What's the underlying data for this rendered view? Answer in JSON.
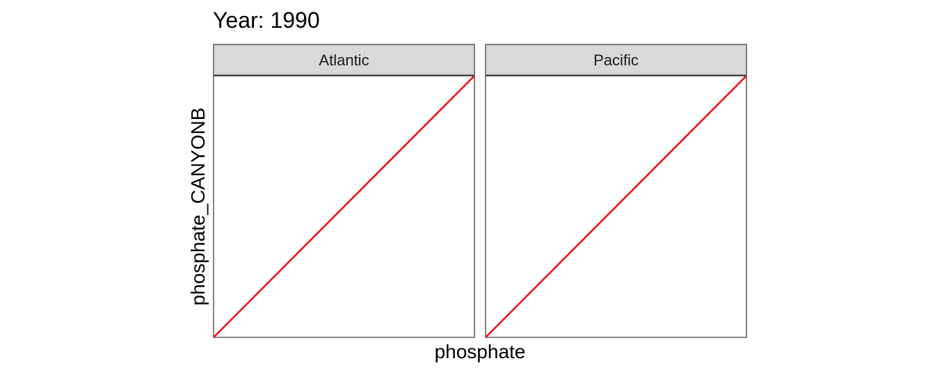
{
  "chart_data": {
    "type": "line",
    "title": "Year: 1990",
    "xlabel": "phosphate",
    "ylabel": "phosphate_CANYONB",
    "grid": false,
    "legend": "none",
    "line_color": "#ee1111",
    "strip_fill": "#d9d9d9",
    "panel_border": "#333333",
    "panels": [
      {
        "name": "Atlantic",
        "series": [
          {
            "x": [
              0,
              1
            ],
            "y": [
              0,
              1
            ]
          }
        ]
      },
      {
        "name": "Pacific",
        "series": [
          {
            "x": [
              0,
              1
            ],
            "y": [
              0,
              1
            ]
          }
        ]
      }
    ],
    "xlim": [
      0,
      1
    ],
    "ylim": [
      0,
      1
    ]
  }
}
